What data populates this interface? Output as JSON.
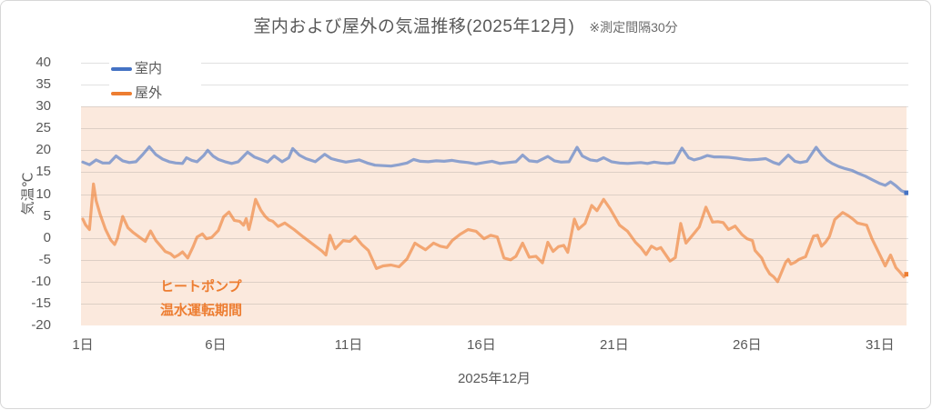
{
  "title": "室内および屋外の気温推移(2025年12月)",
  "title_note": "※測定間隔30分",
  "legend": [
    {
      "label": "室内",
      "color": "#4472C4"
    },
    {
      "label": "屋外",
      "color": "#ED7D31"
    }
  ],
  "annotation": {
    "line1": "ヒートポンプ",
    "line2": "温水運転期間",
    "color": "#ED7D31"
  },
  "colors": {
    "indoor_line": "rgba(68,114,196,0.60)",
    "outdoor_line": "rgba(237,125,49,0.62)",
    "indoor_solid": "#4472C4",
    "outdoor_solid": "#ED7D31",
    "band_fill": "#FBE9DD",
    "gridline": "rgba(89,89,89,0.18)",
    "text_gray": "#595959"
  },
  "chart_data": {
    "type": "line",
    "title": "室内および屋外の気温推移(2025年12月) ※測定間隔30分",
    "xlabel": "2025年12月",
    "ylabel": "気温℃",
    "ylim": [
      -20,
      40
    ],
    "xlim": [
      1,
      32
    ],
    "grid": true,
    "legend_position": "top-left-inside",
    "yticks": [
      40,
      35,
      30,
      25,
      20,
      15,
      10,
      5,
      0,
      -5,
      -10,
      -15,
      -20
    ],
    "xticks": [
      {
        "day": 1,
        "label": "1日"
      },
      {
        "day": 6,
        "label": "6日"
      },
      {
        "day": 11,
        "label": "11日"
      },
      {
        "day": 16,
        "label": "16日"
      },
      {
        "day": 21,
        "label": "21日"
      },
      {
        "day": 26,
        "label": "26日"
      },
      {
        "day": 31,
        "label": "31日"
      }
    ],
    "highlight_band": {
      "ymin": -20,
      "ymax": 30,
      "label": "ヒートポンプ温水運転期間"
    },
    "series": [
      {
        "name": "室内",
        "points": [
          [
            1.0,
            17.3
          ],
          [
            1.25,
            16.7
          ],
          [
            1.5,
            17.8
          ],
          [
            1.75,
            17.1
          ],
          [
            2.0,
            17.1
          ],
          [
            2.25,
            18.7
          ],
          [
            2.5,
            17.6
          ],
          [
            2.75,
            17.2
          ],
          [
            3.0,
            17.4
          ],
          [
            3.25,
            19.0
          ],
          [
            3.5,
            20.8
          ],
          [
            3.75,
            19.0
          ],
          [
            4.0,
            18.0
          ],
          [
            4.25,
            17.4
          ],
          [
            4.5,
            17.1
          ],
          [
            4.75,
            17.0
          ],
          [
            4.9,
            18.3
          ],
          [
            5.1,
            17.7
          ],
          [
            5.3,
            17.4
          ],
          [
            5.55,
            18.8
          ],
          [
            5.7,
            20.0
          ],
          [
            5.9,
            18.7
          ],
          [
            6.1,
            17.9
          ],
          [
            6.35,
            17.4
          ],
          [
            6.6,
            17.0
          ],
          [
            6.85,
            17.4
          ],
          [
            7.2,
            19.6
          ],
          [
            7.45,
            18.5
          ],
          [
            7.7,
            17.9
          ],
          [
            7.95,
            17.3
          ],
          [
            8.2,
            18.7
          ],
          [
            8.5,
            17.4
          ],
          [
            8.75,
            18.3
          ],
          [
            8.9,
            20.4
          ],
          [
            9.15,
            18.9
          ],
          [
            9.4,
            18.1
          ],
          [
            9.75,
            17.4
          ],
          [
            10.1,
            19.1
          ],
          [
            10.35,
            18.1
          ],
          [
            10.6,
            17.7
          ],
          [
            10.9,
            17.3
          ],
          [
            11.2,
            17.6
          ],
          [
            11.4,
            17.8
          ],
          [
            11.7,
            17.1
          ],
          [
            12.0,
            16.6
          ],
          [
            12.3,
            16.5
          ],
          [
            12.6,
            16.4
          ],
          [
            12.9,
            16.7
          ],
          [
            13.2,
            17.1
          ],
          [
            13.45,
            17.9
          ],
          [
            13.7,
            17.5
          ],
          [
            14.0,
            17.4
          ],
          [
            14.3,
            17.6
          ],
          [
            14.6,
            17.5
          ],
          [
            14.9,
            17.7
          ],
          [
            15.2,
            17.4
          ],
          [
            15.5,
            17.2
          ],
          [
            15.8,
            16.9
          ],
          [
            16.1,
            17.2
          ],
          [
            16.4,
            17.5
          ],
          [
            16.7,
            17.0
          ],
          [
            17.0,
            17.2
          ],
          [
            17.3,
            17.4
          ],
          [
            17.55,
            18.9
          ],
          [
            17.8,
            17.6
          ],
          [
            18.1,
            17.4
          ],
          [
            18.5,
            18.6
          ],
          [
            18.75,
            17.6
          ],
          [
            19.0,
            17.3
          ],
          [
            19.3,
            17.4
          ],
          [
            19.6,
            20.7
          ],
          [
            19.8,
            18.7
          ],
          [
            20.1,
            17.8
          ],
          [
            20.35,
            17.6
          ],
          [
            20.6,
            18.3
          ],
          [
            20.9,
            17.4
          ],
          [
            21.2,
            17.1
          ],
          [
            21.5,
            17.0
          ],
          [
            21.75,
            17.1
          ],
          [
            22.0,
            17.2
          ],
          [
            22.25,
            17.0
          ],
          [
            22.5,
            17.3
          ],
          [
            22.75,
            17.1
          ],
          [
            23.0,
            17.0
          ],
          [
            23.25,
            17.2
          ],
          [
            23.55,
            20.5
          ],
          [
            23.8,
            18.3
          ],
          [
            24.0,
            17.8
          ],
          [
            24.25,
            18.2
          ],
          [
            24.5,
            18.8
          ],
          [
            24.75,
            18.5
          ],
          [
            25.0,
            18.5
          ],
          [
            25.3,
            18.4
          ],
          [
            25.6,
            18.2
          ],
          [
            25.9,
            17.9
          ],
          [
            26.1,
            17.8
          ],
          [
            26.4,
            17.9
          ],
          [
            26.7,
            18.1
          ],
          [
            27.0,
            17.2
          ],
          [
            27.2,
            16.8
          ],
          [
            27.55,
            18.9
          ],
          [
            27.8,
            17.5
          ],
          [
            28.0,
            17.2
          ],
          [
            28.25,
            17.5
          ],
          [
            28.6,
            20.7
          ],
          [
            28.8,
            19.0
          ],
          [
            29.0,
            17.8
          ],
          [
            29.2,
            17.0
          ],
          [
            29.45,
            16.3
          ],
          [
            29.7,
            15.8
          ],
          [
            29.95,
            15.4
          ],
          [
            30.2,
            14.7
          ],
          [
            30.45,
            14.1
          ],
          [
            30.7,
            13.3
          ],
          [
            31.0,
            12.4
          ],
          [
            31.2,
            12.0
          ],
          [
            31.4,
            12.8
          ],
          [
            31.6,
            11.9
          ],
          [
            31.8,
            10.8
          ],
          [
            32.0,
            10.3
          ]
        ]
      },
      {
        "name": "屋外",
        "points": [
          [
            1.0,
            4.3
          ],
          [
            1.1,
            3.0
          ],
          [
            1.25,
            1.9
          ],
          [
            1.4,
            12.3
          ],
          [
            1.5,
            8.5
          ],
          [
            1.65,
            5.4
          ],
          [
            1.85,
            2.0
          ],
          [
            2.05,
            -0.5
          ],
          [
            2.2,
            -1.5
          ],
          [
            2.3,
            -0.1
          ],
          [
            2.5,
            4.9
          ],
          [
            2.7,
            2.3
          ],
          [
            2.9,
            1.2
          ],
          [
            3.1,
            0.3
          ],
          [
            3.35,
            -0.8
          ],
          [
            3.55,
            1.6
          ],
          [
            3.75,
            -0.6
          ],
          [
            3.95,
            -2.0
          ],
          [
            4.1,
            -3.1
          ],
          [
            4.3,
            -3.6
          ],
          [
            4.45,
            -4.4
          ],
          [
            4.6,
            -3.9
          ],
          [
            4.75,
            -3.2
          ],
          [
            4.95,
            -4.6
          ],
          [
            5.15,
            -2.0
          ],
          [
            5.3,
            0.2
          ],
          [
            5.5,
            0.9
          ],
          [
            5.65,
            -0.2
          ],
          [
            5.85,
            0.1
          ],
          [
            6.1,
            1.7
          ],
          [
            6.3,
            4.8
          ],
          [
            6.5,
            5.9
          ],
          [
            6.7,
            4.0
          ],
          [
            6.9,
            3.8
          ],
          [
            7.05,
            2.9
          ],
          [
            7.15,
            4.4
          ],
          [
            7.25,
            1.9
          ],
          [
            7.35,
            4.4
          ],
          [
            7.5,
            8.8
          ],
          [
            7.7,
            6.3
          ],
          [
            7.85,
            5.0
          ],
          [
            8.0,
            4.1
          ],
          [
            8.15,
            3.8
          ],
          [
            8.35,
            2.6
          ],
          [
            8.6,
            3.4
          ],
          [
            8.95,
            1.9
          ],
          [
            9.3,
            0.2
          ],
          [
            9.6,
            -1.2
          ],
          [
            10.0,
            -3.0
          ],
          [
            10.15,
            -3.9
          ],
          [
            10.3,
            0.6
          ],
          [
            10.5,
            -2.5
          ],
          [
            10.8,
            -0.6
          ],
          [
            11.05,
            -0.8
          ],
          [
            11.25,
            0.3
          ],
          [
            11.5,
            -1.5
          ],
          [
            11.75,
            -2.9
          ],
          [
            12.05,
            -7.0
          ],
          [
            12.3,
            -6.4
          ],
          [
            12.6,
            -6.2
          ],
          [
            12.9,
            -6.6
          ],
          [
            13.2,
            -4.8
          ],
          [
            13.5,
            -1.2
          ],
          [
            13.7,
            -2.0
          ],
          [
            13.9,
            -2.7
          ],
          [
            14.2,
            -1.2
          ],
          [
            14.45,
            -1.9
          ],
          [
            14.7,
            -2.2
          ],
          [
            14.9,
            -0.6
          ],
          [
            15.2,
            0.8
          ],
          [
            15.5,
            1.9
          ],
          [
            15.8,
            1.5
          ],
          [
            16.1,
            -0.2
          ],
          [
            16.35,
            0.6
          ],
          [
            16.6,
            0.2
          ],
          [
            16.85,
            -4.6
          ],
          [
            17.1,
            -5.0
          ],
          [
            17.3,
            -4.2
          ],
          [
            17.55,
            -1.2
          ],
          [
            17.8,
            -4.4
          ],
          [
            18.05,
            -4.2
          ],
          [
            18.3,
            -5.7
          ],
          [
            18.5,
            -1.0
          ],
          [
            18.7,
            -3.1
          ],
          [
            18.9,
            -2.0
          ],
          [
            19.1,
            -1.7
          ],
          [
            19.25,
            -3.3
          ],
          [
            19.5,
            4.3
          ],
          [
            19.65,
            2.0
          ],
          [
            19.9,
            3.3
          ],
          [
            20.15,
            7.4
          ],
          [
            20.35,
            6.2
          ],
          [
            20.6,
            8.8
          ],
          [
            20.85,
            6.6
          ],
          [
            21.2,
            2.9
          ],
          [
            21.5,
            1.5
          ],
          [
            21.8,
            -1.0
          ],
          [
            22.0,
            -2.2
          ],
          [
            22.2,
            -3.8
          ],
          [
            22.4,
            -1.9
          ],
          [
            22.6,
            -2.6
          ],
          [
            22.75,
            -2.2
          ],
          [
            23.1,
            -5.3
          ],
          [
            23.3,
            -4.5
          ],
          [
            23.5,
            3.3
          ],
          [
            23.7,
            -1.2
          ],
          [
            24.0,
            1.0
          ],
          [
            24.2,
            2.5
          ],
          [
            24.45,
            7.0
          ],
          [
            24.7,
            3.6
          ],
          [
            24.9,
            3.7
          ],
          [
            25.1,
            3.5
          ],
          [
            25.3,
            1.9
          ],
          [
            25.55,
            2.7
          ],
          [
            25.8,
            0.8
          ],
          [
            26.0,
            -0.2
          ],
          [
            26.2,
            -0.6
          ],
          [
            26.3,
            -2.9
          ],
          [
            26.55,
            -4.6
          ],
          [
            26.7,
            -6.7
          ],
          [
            26.85,
            -8.2
          ],
          [
            27.0,
            -8.9
          ],
          [
            27.15,
            -10.0
          ],
          [
            27.45,
            -5.6
          ],
          [
            27.55,
            -4.9
          ],
          [
            27.65,
            -6.0
          ],
          [
            27.8,
            -5.6
          ],
          [
            27.95,
            -4.9
          ],
          [
            28.2,
            -4.3
          ],
          [
            28.5,
            0.4
          ],
          [
            28.65,
            0.6
          ],
          [
            28.8,
            -1.9
          ],
          [
            28.95,
            -1.0
          ],
          [
            29.1,
            0.3
          ],
          [
            29.3,
            4.2
          ],
          [
            29.6,
            5.8
          ],
          [
            29.8,
            5.1
          ],
          [
            30.0,
            4.2
          ],
          [
            30.15,
            3.4
          ],
          [
            30.3,
            3.2
          ],
          [
            30.5,
            2.9
          ],
          [
            30.7,
            -0.2
          ],
          [
            31.0,
            -3.9
          ],
          [
            31.2,
            -6.4
          ],
          [
            31.4,
            -3.9
          ],
          [
            31.6,
            -6.8
          ],
          [
            31.75,
            -7.8
          ],
          [
            31.9,
            -8.9
          ],
          [
            32.0,
            -8.3
          ]
        ]
      }
    ]
  }
}
